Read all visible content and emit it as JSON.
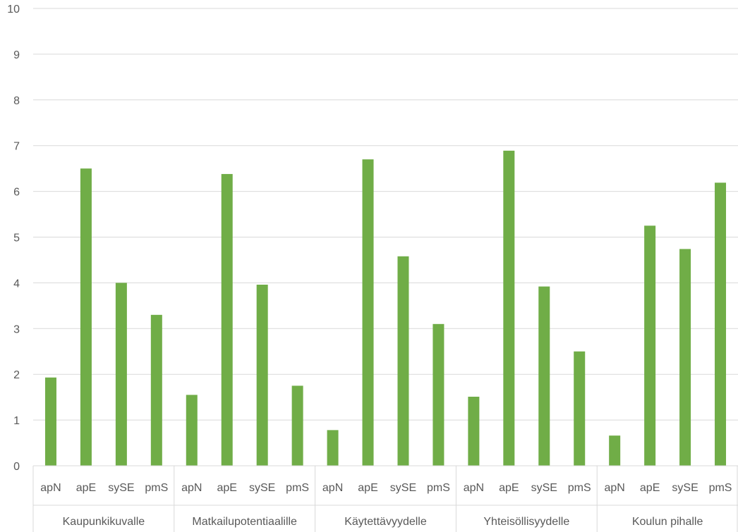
{
  "chart_data": {
    "type": "bar",
    "title": "",
    "xlabel": "",
    "ylabel": "",
    "ylim": [
      0,
      10
    ],
    "yticks": [
      "0",
      "1",
      "2",
      "3",
      "4",
      "5",
      "6",
      "7",
      "8",
      "9",
      "10"
    ],
    "grid": true,
    "bar_color": "#70AD47",
    "groups": [
      {
        "label": "Kaupunkikuvalle",
        "categories": [
          "apN",
          "apE",
          "sySE",
          "pmS"
        ],
        "values": [
          1.93,
          6.5,
          4.0,
          3.3
        ]
      },
      {
        "label": "Matkailupotentiaalille",
        "categories": [
          "apN",
          "apE",
          "sySE",
          "pmS"
        ],
        "values": [
          1.55,
          6.38,
          3.96,
          1.75
        ]
      },
      {
        "label": "Käytettävyydelle",
        "categories": [
          "apN",
          "apE",
          "sySE",
          "pmS"
        ],
        "values": [
          0.78,
          6.7,
          4.58,
          3.1
        ]
      },
      {
        "label": "Yhteisöllisyydelle",
        "categories": [
          "apN",
          "apE",
          "sySE",
          "pmS"
        ],
        "values": [
          1.51,
          6.89,
          3.92,
          2.5
        ]
      },
      {
        "label": "Koulun pihalle",
        "categories": [
          "apN",
          "apE",
          "sySE",
          "pmS"
        ],
        "values": [
          0.66,
          5.25,
          4.74,
          6.19
        ]
      }
    ]
  }
}
